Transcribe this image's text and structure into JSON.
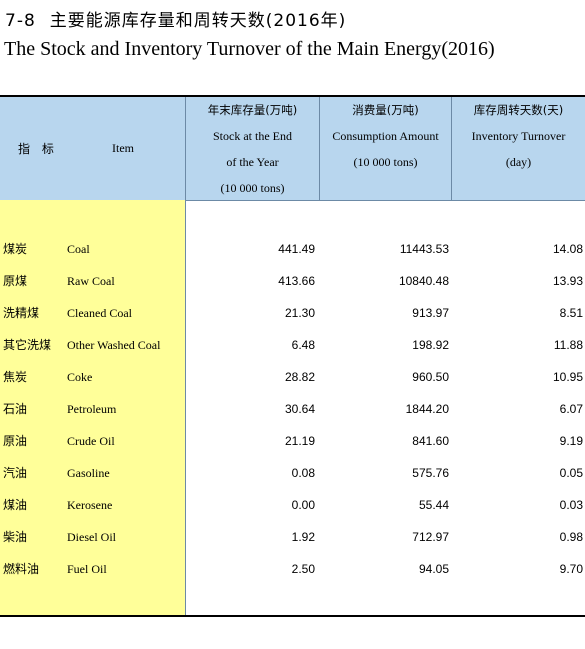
{
  "title": {
    "number": "7-8",
    "cn": "主要能源库存量和周转天数(2016年)",
    "en": "The Stock and Inventory Turnover of the Main Energy(2016)"
  },
  "header": {
    "indicator_cn": "指 标",
    "item_en": "Item",
    "col1": {
      "cn": "年末库存量(万吨)",
      "en_line1": "Stock at the End",
      "en_line2": "of the Year",
      "unit": "(10 000 tons)"
    },
    "col2": {
      "cn": "消费量(万吨)",
      "en": "Consumption Amount",
      "unit": "(10 000 tons)"
    },
    "col3": {
      "cn": "库存周转天数(天)",
      "en": "Inventory Turnover",
      "unit": "(day)"
    }
  },
  "rows": [
    {
      "cn": "煤炭",
      "en": "Coal",
      "stock": "441.49",
      "consumption": "11443.53",
      "turnover": "14.08"
    },
    {
      "cn": "原煤",
      "en": "Raw Coal",
      "stock": "413.66",
      "consumption": "10840.48",
      "turnover": "13.93"
    },
    {
      "cn": "洗精煤",
      "en": "Cleaned Coal",
      "stock": "21.30",
      "consumption": "913.97",
      "turnover": "8.51"
    },
    {
      "cn": "其它洗煤",
      "en": "Other Washed Coal",
      "stock": "6.48",
      "consumption": "198.92",
      "turnover": "11.88"
    },
    {
      "cn": "焦炭",
      "en": "Coke",
      "stock": "28.82",
      "consumption": "960.50",
      "turnover": "10.95"
    },
    {
      "cn": "石油",
      "en": "Petroleum",
      "stock": "30.64",
      "consumption": "1844.20",
      "turnover": "6.07"
    },
    {
      "cn": "原油",
      "en": "Crude Oil",
      "stock": "21.19",
      "consumption": "841.60",
      "turnover": "9.19"
    },
    {
      "cn": "汽油",
      "en": "Gasoline",
      "stock": "0.08",
      "consumption": "575.76",
      "turnover": "0.05"
    },
    {
      "cn": "煤油",
      "en": "Kerosene",
      "stock": "0.00",
      "consumption": "55.44",
      "turnover": "0.03"
    },
    {
      "cn": "柴油",
      "en": "Diesel Oil",
      "stock": "1.92",
      "consumption": "712.97",
      "turnover": "0.98"
    },
    {
      "cn": "燃料油",
      "en": "Fuel Oil",
      "stock": "2.50",
      "consumption": "94.05",
      "turnover": "9.70"
    }
  ],
  "colors": {
    "header_bg": "#b8d6ee",
    "label_col_bg": "#ffff99"
  }
}
